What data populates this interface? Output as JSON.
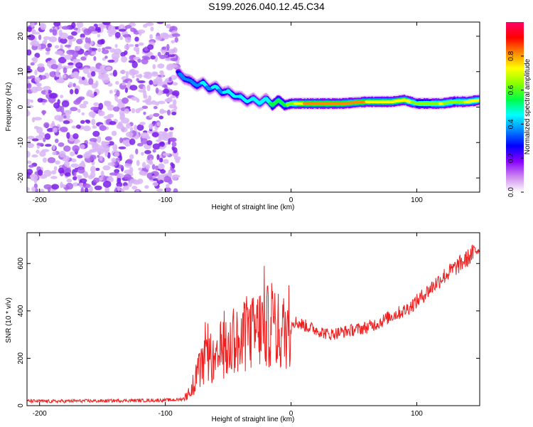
{
  "title": "S199.2026.040.12.45.C34",
  "chart_data": [
    {
      "type": "heatmap",
      "name": "spectrogram",
      "xlabel": "Height of straight line (km)",
      "ylabel": "Frequency (Hz)",
      "xlim": [
        -210,
        150
      ],
      "ylim": [
        -24,
        24
      ],
      "xticks": [
        -200,
        -100,
        0,
        100
      ],
      "yticks": [
        -20,
        -10,
        0,
        10,
        20
      ],
      "colorbar": {
        "label": "Normalized spectral amplitude",
        "range": [
          0,
          1
        ],
        "ticks": [
          0.0,
          0.2,
          0.4,
          0.6,
          0.8
        ],
        "colors": [
          "#ffffff",
          "#cc88ee",
          "#8800ff",
          "#0000ff",
          "#0088ff",
          "#00ffff",
          "#00ff44",
          "#88ff00",
          "#ffff00",
          "#ff8800",
          "#ff0000",
          "#ff0066"
        ]
      },
      "noise_region": {
        "x": [
          -210,
          -90
        ],
        "y": [
          -24,
          24
        ]
      },
      "ridge": {
        "x": [
          -90,
          -85,
          -80,
          -75,
          -70,
          -65,
          -60,
          -55,
          -50,
          -45,
          -40,
          -35,
          -30,
          -25,
          -20,
          -15,
          -10,
          -5,
          0,
          10,
          20,
          40,
          60,
          80,
          90,
          100,
          110,
          120,
          130,
          140,
          150
        ],
        "freq": [
          10,
          8,
          7.5,
          6,
          7,
          5,
          6,
          4,
          4.5,
          3,
          3,
          1.5,
          2.5,
          1,
          2.5,
          0.5,
          2,
          0.5,
          1,
          1,
          1,
          1,
          1.5,
          1.5,
          2,
          1,
          1,
          1,
          1.5,
          1.5,
          2
        ],
        "amplitude": [
          0.3,
          0.35,
          0.4,
          0.35,
          0.45,
          0.4,
          0.45,
          0.4,
          0.5,
          0.45,
          0.5,
          0.45,
          0.5,
          0.5,
          0.5,
          0.55,
          0.6,
          0.6,
          0.7,
          0.85,
          0.9,
          0.9,
          0.85,
          0.85,
          0.8,
          0.7,
          0.7,
          0.75,
          0.7,
          0.75,
          0.75
        ]
      }
    },
    {
      "type": "line",
      "name": "snr",
      "xlabel": "Height of straight line (km)",
      "ylabel": "SNR (10 * v/v)",
      "xlim": [
        -210,
        150
      ],
      "ylim": [
        0,
        730
      ],
      "xticks": [
        -200,
        -100,
        0,
        100
      ],
      "yticks": [
        0,
        200,
        400,
        600
      ],
      "color": "#ee2020",
      "series": [
        {
          "name": "SNR",
          "x": [
            -210,
            -190,
            -170,
            -150,
            -130,
            -110,
            -90,
            -85,
            -80,
            -75,
            -70,
            -65,
            -60,
            -55,
            -50,
            -45,
            -40,
            -35,
            -30,
            -25,
            -20,
            -15,
            -10,
            -5,
            0,
            10,
            20,
            30,
            40,
            50,
            60,
            70,
            80,
            90,
            100,
            110,
            120,
            130,
            140,
            150
          ],
          "y": [
            20,
            18,
            20,
            20,
            22,
            22,
            25,
            30,
            60,
            130,
            170,
            210,
            160,
            250,
            220,
            300,
            230,
            330,
            300,
            330,
            320,
            360,
            310,
            310,
            360,
            340,
            320,
            300,
            310,
            320,
            330,
            350,
            380,
            400,
            440,
            490,
            540,
            580,
            620,
            670
          ]
        }
      ]
    }
  ]
}
